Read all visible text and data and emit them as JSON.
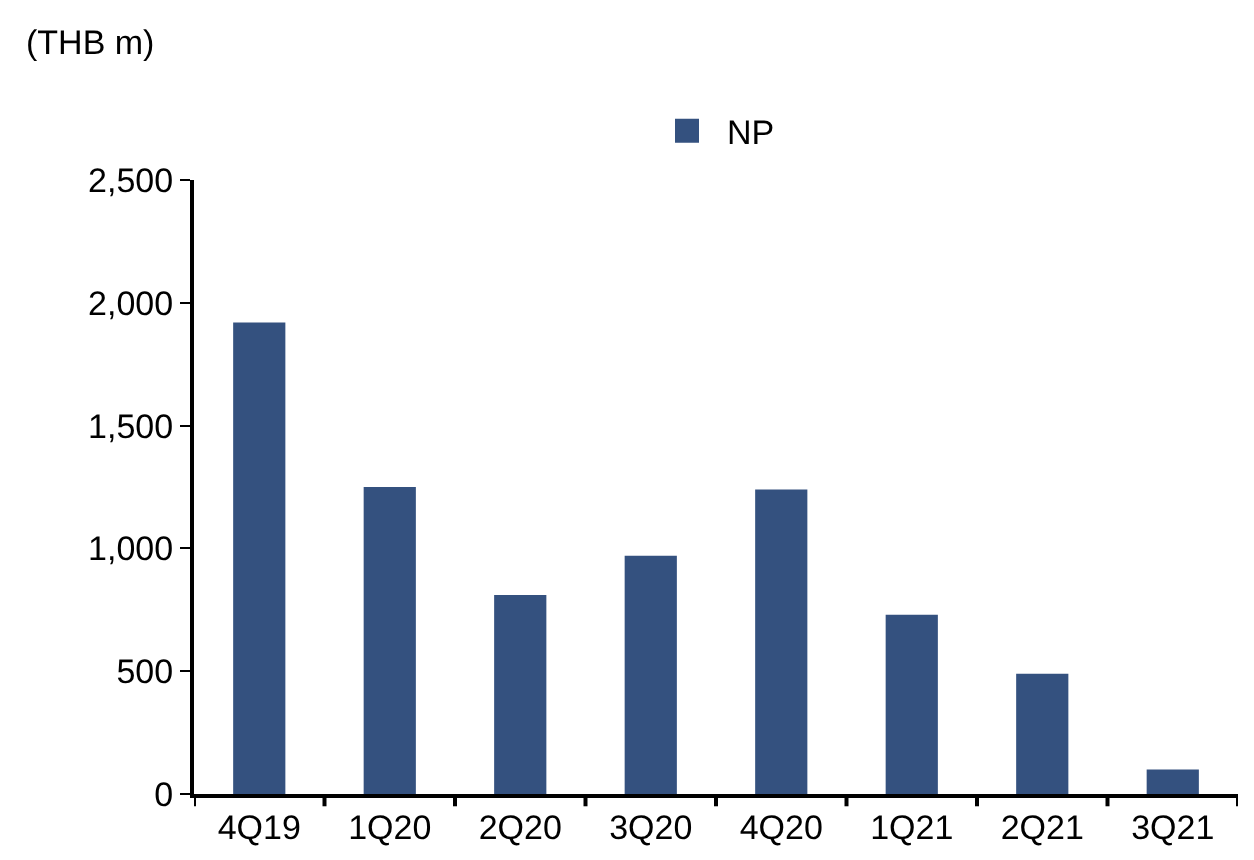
{
  "chart_data": {
    "type": "bar",
    "ylabel": "(THB m)",
    "categories": [
      "4Q19",
      "1Q20",
      "2Q20",
      "3Q20",
      "4Q20",
      "1Q21",
      "2Q21",
      "3Q21"
    ],
    "series": [
      {
        "name": "NP",
        "color": "#34517f",
        "values": [
          1920,
          1250,
          810,
          970,
          1240,
          730,
          490,
          100
        ]
      }
    ],
    "ylim": [
      0,
      2500
    ],
    "yticks": [
      {
        "value": 0,
        "label": "0"
      },
      {
        "value": 500,
        "label": "500"
      },
      {
        "value": 1000,
        "label": "1,000"
      },
      {
        "value": 1500,
        "label": "1,500"
      },
      {
        "value": 2000,
        "label": "2,000"
      },
      {
        "value": 2500,
        "label": "2,500"
      }
    ],
    "grid": false,
    "legend": "top"
  }
}
